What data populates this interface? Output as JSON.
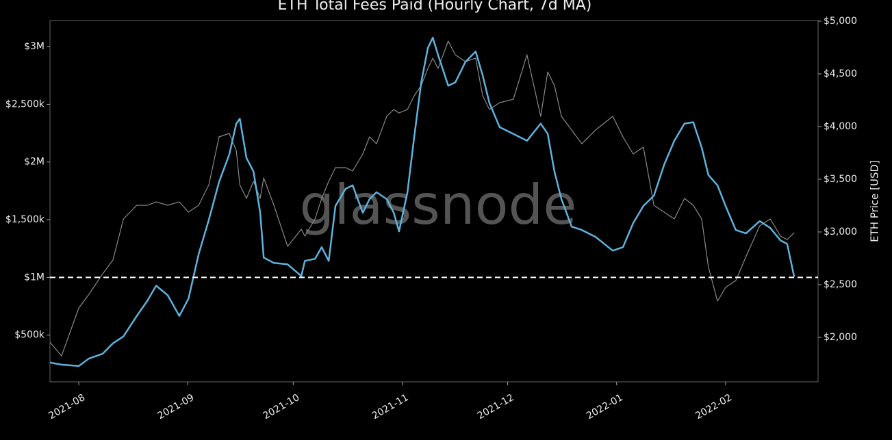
{
  "chart_data": {
    "type": "line",
    "title": "ETH Total Fees Paid (Hourly Chart, 7d MA)",
    "watermark": "glassnode",
    "y2_label": "ETH Price [USD]",
    "x": [
      -8.2,
      -4.9,
      0,
      2.9,
      6.8,
      9.7,
      12.7,
      16.5,
      19.5,
      22.0,
      25.3,
      28.6,
      31.2,
      34.1,
      37.0,
      39.9,
      42.8,
      44.8,
      45.8,
      47.7,
      49.7,
      51.6,
      52.6,
      55.5,
      59.4,
      63.3,
      64.3,
      67.2,
      69.1,
      71.1,
      73.0,
      75.9,
      77.9,
      80.8,
      82.7,
      84.7,
      87.6,
      89.6,
      91.1,
      93.5,
      95.4,
      97.4,
      99.3,
      100.7,
      102.2,
      105.1,
      107.1,
      110.0,
      112.9,
      114.9,
      116.8,
      119.7,
      123.6,
      127.5,
      131.4,
      133.4,
      135.3,
      137.3,
      140.2,
      143.1,
      147.0,
      151.9,
      154.8,
      157.7,
      160.6,
      163.6,
      166.5,
      169.4,
      172.3,
      174.8,
      177.2,
      179.1,
      181.7,
      184.0,
      186.9,
      189.8,
      193.7,
      196.7,
      199.6,
      201.5,
      203.5
    ],
    "xlim": [
      -8.2,
      210.3
    ],
    "xticks": [
      {
        "value": 0,
        "label": "2021-08"
      },
      {
        "value": 31,
        "label": "2021-09"
      },
      {
        "value": 61,
        "label": "2021-10"
      },
      {
        "value": 92,
        "label": "2021-11"
      },
      {
        "value": 122,
        "label": "2021-12"
      },
      {
        "value": 153,
        "label": "2022-01"
      },
      {
        "value": 184,
        "label": "2022-02"
      }
    ],
    "ylim": [
      95000,
      3226000
    ],
    "yticks": [
      {
        "value": 500000,
        "label": "$500k"
      },
      {
        "value": 1000000,
        "label": "$1M"
      },
      {
        "value": 1500000,
        "label": "$1,500k"
      },
      {
        "value": 2000000,
        "label": "$2M"
      },
      {
        "value": 2500000,
        "label": "$2,500k"
      },
      {
        "value": 3000000,
        "label": "$3M"
      }
    ],
    "y2lim": [
      1578,
      5006
    ],
    "y2ticks": [
      {
        "value": 2000,
        "label": "$2,000"
      },
      {
        "value": 2500,
        "label": "$2,500"
      },
      {
        "value": 3000,
        "label": "$3,000"
      },
      {
        "value": 3500,
        "label": "$3,500"
      },
      {
        "value": 4000,
        "label": "$4,000"
      },
      {
        "value": 4500,
        "label": "$4,500"
      },
      {
        "value": 5000,
        "label": "$5,000"
      }
    ],
    "hline": 1000000,
    "series": [
      {
        "color": "#8a8a8a",
        "axis": "y2",
        "values": [
          1954,
          1824,
          2279,
          2409,
          2603,
          2733,
          3123,
          3253,
          3253,
          3285,
          3253,
          3285,
          3188,
          3253,
          3448,
          3902,
          3935,
          3772,
          3448,
          3318,
          3480,
          3318,
          3513,
          3253,
          2863,
          3026,
          2961,
          3123,
          3318,
          3480,
          3610,
          3610,
          3578,
          3740,
          3902,
          3837,
          4097,
          4162,
          4129,
          4162,
          4292,
          4389,
          4551,
          4649,
          4551,
          4811,
          4681,
          4616,
          4649,
          4292,
          4162,
          4227,
          4259,
          4681,
          4097,
          4519,
          4389,
          4097,
          3967,
          3837,
          3967,
          4097,
          3902,
          3740,
          3805,
          3253,
          3188,
          3123,
          3318,
          3253,
          3123,
          2668,
          2344,
          2474,
          2538,
          2766,
          3058,
          3123,
          2961,
          2928,
          2993
        ]
      },
      {
        "color": "#5db3de",
        "values": [
          262000,
          244000,
          232000,
          297000,
          339000,
          428000,
          488000,
          666000,
          797000,
          928000,
          845000,
          666000,
          815000,
          1202000,
          1500000,
          1827000,
          2065000,
          2333000,
          2375000,
          2036000,
          1917000,
          1560000,
          1172000,
          1125000,
          1113000,
          1012000,
          1143000,
          1161000,
          1262000,
          1143000,
          1619000,
          1768000,
          1798000,
          1560000,
          1678000,
          1738000,
          1678000,
          1560000,
          1399000,
          1738000,
          2214000,
          2690000,
          2988000,
          3077000,
          2928000,
          2661000,
          2690000,
          2869000,
          2958000,
          2750000,
          2512000,
          2303000,
          2244000,
          2184000,
          2333000,
          2244000,
          1917000,
          1678000,
          1440000,
          1411000,
          1351000,
          1232000,
          1262000,
          1470000,
          1619000,
          1708000,
          1976000,
          2184000,
          2333000,
          2345000,
          2125000,
          1887000,
          1798000,
          1619000,
          1411000,
          1381000,
          1488000,
          1428000,
          1321000,
          1291000,
          1006000
        ]
      }
    ]
  }
}
